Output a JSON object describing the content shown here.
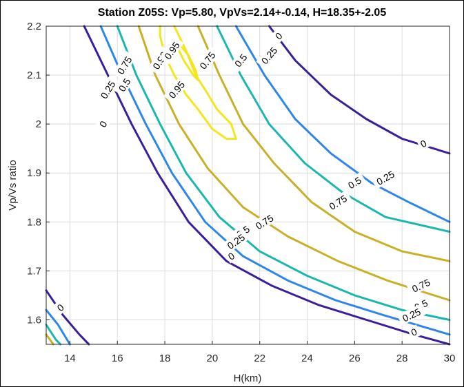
{
  "chart_data": {
    "type": "contour",
    "title": "Station Z05S: Vp=5.80, VpVs=2.14+-0.14, H=18.35+-2.05",
    "xlabel": "H(km)",
    "ylabel": "Vp/Vs ratio",
    "xlim": [
      13,
      30
    ],
    "ylim": [
      1.55,
      2.2
    ],
    "xticks": [
      14,
      16,
      18,
      20,
      22,
      24,
      26,
      28,
      30
    ],
    "yticks": [
      1.6,
      1.7,
      1.8,
      1.9,
      2,
      2.1,
      2.2
    ],
    "grid": true,
    "levels": [
      {
        "level": 0,
        "label": "0",
        "color": "#3b1f9a"
      },
      {
        "level": 0.25,
        "label": "0.25",
        "color": "#2e86ea"
      },
      {
        "level": 0.5,
        "label": "0.5",
        "color": "#1ab7b0"
      },
      {
        "level": 0.75,
        "label": "0.75",
        "color": "#c9b026"
      },
      {
        "level": 0.95,
        "label": "0.95",
        "color": "#f3e61c"
      },
      {
        "level": 0.99,
        "label": "0.99",
        "color": "#f3e61c"
      }
    ],
    "contours": [
      {
        "level": 0,
        "points": [
          [
            14.6,
            2.2
          ],
          [
            15.6,
            2.1
          ],
          [
            16.6,
            2.0
          ],
          [
            17.7,
            1.9
          ],
          [
            19.0,
            1.8
          ],
          [
            20.6,
            1.72
          ],
          [
            22.5,
            1.67
          ],
          [
            24.5,
            1.63
          ],
          [
            26.5,
            1.6
          ],
          [
            28.5,
            1.57
          ],
          [
            30,
            1.55
          ]
        ]
      },
      {
        "level": 0.25,
        "points": [
          [
            15.3,
            2.2
          ],
          [
            16.2,
            2.1
          ],
          [
            17.2,
            2.0
          ],
          [
            18.3,
            1.9
          ],
          [
            19.7,
            1.8
          ],
          [
            21.3,
            1.73
          ],
          [
            23.2,
            1.68
          ],
          [
            25.2,
            1.64
          ],
          [
            27.2,
            1.61
          ],
          [
            30,
            1.57
          ]
        ]
      },
      {
        "level": 0.5,
        "points": [
          [
            16.0,
            2.2
          ],
          [
            16.8,
            2.1
          ],
          [
            17.8,
            2.0
          ],
          [
            18.9,
            1.9
          ],
          [
            20.3,
            1.81
          ],
          [
            22.0,
            1.74
          ],
          [
            24.0,
            1.69
          ],
          [
            26.0,
            1.65
          ],
          [
            28.0,
            1.62
          ],
          [
            30,
            1.6
          ]
        ]
      },
      {
        "level": 0.75,
        "points": [
          [
            16.9,
            2.2
          ],
          [
            17.6,
            2.1
          ],
          [
            18.6,
            2.0
          ],
          [
            19.8,
            1.91
          ],
          [
            21.3,
            1.83
          ],
          [
            23.2,
            1.77
          ],
          [
            25.3,
            1.72
          ],
          [
            27.4,
            1.68
          ],
          [
            30,
            1.64
          ]
        ]
      },
      {
        "level": 0,
        "points": [
          [
            22.4,
            2.2
          ],
          [
            23.5,
            2.13
          ],
          [
            25.0,
            2.06
          ],
          [
            26.5,
            2.01
          ],
          [
            28.0,
            1.97
          ],
          [
            30,
            1.94
          ]
        ]
      },
      {
        "level": 0.25,
        "points": [
          [
            21.0,
            2.2
          ],
          [
            22.2,
            2.1
          ],
          [
            23.5,
            2.01
          ],
          [
            25.0,
            1.94
          ],
          [
            26.7,
            1.88
          ],
          [
            28.3,
            1.84
          ],
          [
            30,
            1.8
          ]
        ]
      },
      {
        "level": 0.5,
        "points": [
          [
            20.2,
            2.2
          ],
          [
            21.2,
            2.1
          ],
          [
            22.4,
            2.0
          ],
          [
            23.9,
            1.92
          ],
          [
            25.5,
            1.86
          ],
          [
            27.3,
            1.81
          ],
          [
            30,
            1.78
          ]
        ]
      },
      {
        "level": 0.75,
        "points": [
          [
            19.4,
            2.2
          ],
          [
            20.3,
            2.1
          ],
          [
            21.3,
            2.0
          ],
          [
            22.6,
            1.92
          ],
          [
            24.2,
            1.84
          ],
          [
            26.0,
            1.78
          ],
          [
            28.0,
            1.74
          ],
          [
            30,
            1.72
          ]
        ]
      },
      {
        "level": 0,
        "points": [
          [
            13.0,
            1.66
          ],
          [
            13.7,
            1.61
          ],
          [
            14.4,
            1.57
          ],
          [
            14.8,
            1.55
          ]
        ]
      },
      {
        "level": 0.25,
        "points": [
          [
            13.0,
            1.62
          ],
          [
            13.5,
            1.59
          ],
          [
            14.0,
            1.55
          ]
        ]
      },
      {
        "level": 0.5,
        "points": [
          [
            13.0,
            1.59
          ],
          [
            13.4,
            1.56
          ],
          [
            13.6,
            1.55
          ]
        ]
      },
      {
        "level": 0.75,
        "points": [
          [
            13.0,
            1.57
          ],
          [
            13.3,
            1.55
          ]
        ]
      },
      {
        "level": 0.95,
        "points": [
          [
            18.4,
            2.2
          ],
          [
            18.9,
            2.15
          ],
          [
            19.3,
            2.1
          ],
          [
            19.7,
            2.07
          ],
          [
            20.2,
            2.03
          ],
          [
            20.8,
            2.0
          ],
          [
            21.0,
            1.97
          ],
          [
            20.6,
            1.97
          ],
          [
            20.0,
            1.99
          ],
          [
            19.4,
            2.03
          ],
          [
            18.9,
            2.06
          ],
          [
            18.4,
            2.1
          ],
          [
            18.0,
            2.14
          ],
          [
            17.8,
            2.18
          ],
          [
            17.8,
            2.2
          ]
        ]
      },
      {
        "level": 0.99,
        "points": [
          [
            18.5,
            2.17
          ],
          [
            19.0,
            2.14
          ],
          [
            19.3,
            2.11
          ],
          [
            19.4,
            2.09
          ],
          [
            19.2,
            2.1
          ],
          [
            18.8,
            2.13
          ],
          [
            18.5,
            2.16
          ]
        ]
      }
    ],
    "contour_labels": [
      {
        "text": "0",
        "x": 15.4,
        "y": 2.0,
        "angle": -60,
        "level": 0
      },
      {
        "text": "0.25",
        "x": 15.6,
        "y": 2.07,
        "angle": -58,
        "level": 0.25
      },
      {
        "text": "0.5",
        "x": 16.3,
        "y": 2.08,
        "angle": -58,
        "level": 0.5
      },
      {
        "text": "0.75",
        "x": 16.3,
        "y": 2.12,
        "angle": -58,
        "level": 0.75
      },
      {
        "text": "0.99",
        "x": 17.8,
        "y": 2.13,
        "angle": -58,
        "level": 0.99
      },
      {
        "text": "0.95",
        "x": 18.3,
        "y": 2.15,
        "angle": -55,
        "level": 0.95
      },
      {
        "text": "0.95",
        "x": 18.5,
        "y": 2.07,
        "angle": -50,
        "level": 0.95
      },
      {
        "text": "0.75",
        "x": 19.8,
        "y": 2.13,
        "angle": -52,
        "level": 0.75
      },
      {
        "text": "0.5",
        "x": 21.2,
        "y": 2.13,
        "angle": -52,
        "level": 0.5
      },
      {
        "text": "0.25",
        "x": 22.4,
        "y": 2.14,
        "angle": -50,
        "level": 0.25
      },
      {
        "text": "0",
        "x": 22.8,
        "y": 2.18,
        "angle": -45,
        "level": 0
      },
      {
        "text": "0",
        "x": 28.9,
        "y": 1.96,
        "angle": -30,
        "level": 0
      },
      {
        "text": "0.25",
        "x": 27.3,
        "y": 1.89,
        "angle": -30,
        "level": 0.25
      },
      {
        "text": "0.5",
        "x": 26.0,
        "y": 1.88,
        "angle": -32,
        "level": 0.5
      },
      {
        "text": "0.75",
        "x": 25.3,
        "y": 1.84,
        "angle": -32,
        "level": 0.75
      },
      {
        "text": "0.75",
        "x": 22.2,
        "y": 1.8,
        "angle": -32,
        "level": 0.75
      },
      {
        "text": "0.5",
        "x": 21.3,
        "y": 1.78,
        "angle": -35,
        "level": 0.5
      },
      {
        "text": "0.25",
        "x": 21.0,
        "y": 1.76,
        "angle": -35,
        "level": 0.25
      },
      {
        "text": "0",
        "x": 20.8,
        "y": 1.73,
        "angle": -35,
        "level": 0
      },
      {
        "text": "0.75",
        "x": 28.8,
        "y": 1.67,
        "angle": -25,
        "level": 0.75
      },
      {
        "text": "0.5",
        "x": 28.8,
        "y": 1.63,
        "angle": -25,
        "level": 0.5
      },
      {
        "text": "0.25",
        "x": 28.4,
        "y": 1.61,
        "angle": -25,
        "level": 0.25
      },
      {
        "text": "0",
        "x": 28.5,
        "y": 1.575,
        "angle": -20,
        "level": 0
      },
      {
        "text": "0",
        "x": 13.6,
        "y": 1.625,
        "angle": -40,
        "level": 0
      }
    ]
  }
}
